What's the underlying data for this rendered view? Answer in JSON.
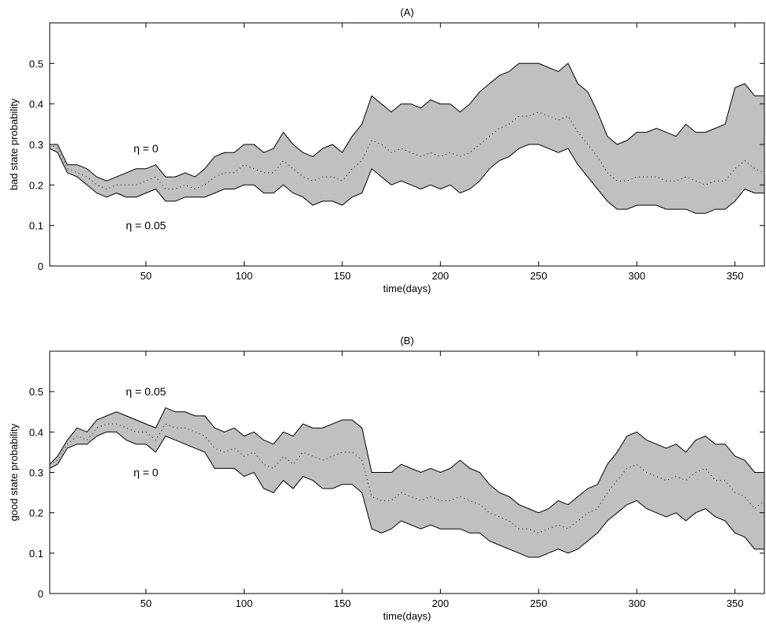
{
  "chart_data": [
    {
      "type": "area",
      "title": "(A)",
      "xlabel": "time(days)",
      "ylabel": "bad state probability",
      "xlim": [
        1,
        365
      ],
      "ylim": [
        0,
        0.6
      ],
      "xticks": [
        50,
        100,
        150,
        200,
        250,
        300,
        350
      ],
      "xtick_labels": [
        "50",
        "100",
        "150",
        "200",
        "250",
        "300",
        "350"
      ],
      "yticks": [
        0,
        0.1,
        0.2,
        0.3,
        0.4,
        0.5
      ],
      "ytick_labels": [
        "0",
        "0.1",
        "0.2",
        "0.3",
        "0.4",
        "0.5"
      ],
      "grid": false,
      "band_color": "#c0c0c0",
      "annotations": [
        {
          "text": "η = 0",
          "x": 50,
          "y": 0.29
        },
        {
          "text": "η = 0.05",
          "x": 50,
          "y": 0.1
        }
      ],
      "x": [
        1,
        5,
        10,
        15,
        20,
        25,
        30,
        35,
        40,
        45,
        50,
        55,
        60,
        65,
        70,
        75,
        80,
        85,
        90,
        95,
        100,
        105,
        110,
        115,
        120,
        125,
        130,
        135,
        140,
        145,
        150,
        155,
        160,
        165,
        170,
        175,
        180,
        185,
        190,
        195,
        200,
        205,
        210,
        215,
        220,
        225,
        230,
        235,
        240,
        245,
        250,
        255,
        260,
        265,
        270,
        275,
        280,
        285,
        290,
        295,
        300,
        305,
        310,
        315,
        320,
        325,
        330,
        335,
        340,
        345,
        350,
        355,
        360,
        365
      ],
      "series": [
        {
          "values": [
            0.3,
            0.3,
            0.25,
            0.25,
            0.24,
            0.22,
            0.21,
            0.22,
            0.23,
            0.24,
            0.24,
            0.25,
            0.22,
            0.22,
            0.23,
            0.22,
            0.24,
            0.27,
            0.28,
            0.28,
            0.3,
            0.3,
            0.28,
            0.29,
            0.33,
            0.3,
            0.28,
            0.27,
            0.29,
            0.3,
            0.28,
            0.32,
            0.35,
            0.42,
            0.4,
            0.38,
            0.4,
            0.4,
            0.39,
            0.41,
            0.4,
            0.4,
            0.38,
            0.4,
            0.43,
            0.45,
            0.47,
            0.48,
            0.5,
            0.5,
            0.5,
            0.49,
            0.48,
            0.5,
            0.45,
            0.43,
            0.38,
            0.32,
            0.3,
            0.31,
            0.33,
            0.33,
            0.34,
            0.33,
            0.32,
            0.35,
            0.33,
            0.33,
            0.34,
            0.35,
            0.44,
            0.45,
            0.42,
            0.42
          ]
        },
        {
          "values": [
            0.3,
            0.29,
            0.24,
            0.23,
            0.22,
            0.2,
            0.19,
            0.2,
            0.2,
            0.2,
            0.21,
            0.22,
            0.19,
            0.19,
            0.2,
            0.19,
            0.2,
            0.22,
            0.23,
            0.23,
            0.25,
            0.24,
            0.23,
            0.23,
            0.26,
            0.24,
            0.22,
            0.21,
            0.22,
            0.22,
            0.21,
            0.24,
            0.26,
            0.31,
            0.3,
            0.28,
            0.29,
            0.28,
            0.27,
            0.28,
            0.27,
            0.28,
            0.27,
            0.28,
            0.3,
            0.32,
            0.34,
            0.35,
            0.37,
            0.37,
            0.38,
            0.37,
            0.36,
            0.37,
            0.33,
            0.3,
            0.27,
            0.23,
            0.21,
            0.21,
            0.22,
            0.22,
            0.22,
            0.21,
            0.21,
            0.22,
            0.21,
            0.2,
            0.21,
            0.21,
            0.24,
            0.26,
            0.24,
            0.23
          ]
        },
        {
          "values": [
            0.29,
            0.28,
            0.23,
            0.22,
            0.2,
            0.18,
            0.17,
            0.18,
            0.17,
            0.17,
            0.18,
            0.19,
            0.16,
            0.16,
            0.17,
            0.17,
            0.17,
            0.18,
            0.19,
            0.19,
            0.2,
            0.2,
            0.18,
            0.18,
            0.2,
            0.18,
            0.17,
            0.15,
            0.16,
            0.16,
            0.15,
            0.17,
            0.18,
            0.24,
            0.22,
            0.2,
            0.21,
            0.2,
            0.19,
            0.2,
            0.19,
            0.2,
            0.18,
            0.19,
            0.21,
            0.24,
            0.26,
            0.27,
            0.29,
            0.3,
            0.3,
            0.29,
            0.28,
            0.29,
            0.25,
            0.22,
            0.19,
            0.16,
            0.14,
            0.14,
            0.15,
            0.15,
            0.15,
            0.14,
            0.14,
            0.14,
            0.13,
            0.13,
            0.14,
            0.14,
            0.16,
            0.19,
            0.18,
            0.18
          ]
        }
      ]
    },
    {
      "type": "area",
      "title": "(B)",
      "xlabel": "time(days)",
      "ylabel": "good state probability",
      "xlim": [
        1,
        365
      ],
      "ylim": [
        0,
        0.6
      ],
      "xticks": [
        50,
        100,
        150,
        200,
        250,
        300,
        350
      ],
      "xtick_labels": [
        "50",
        "100",
        "150",
        "200",
        "250",
        "300",
        "350"
      ],
      "yticks": [
        0,
        0.1,
        0.2,
        0.3,
        0.4,
        0.5
      ],
      "ytick_labels": [
        "0",
        "0.1",
        "0.2",
        "0.3",
        "0.4",
        "0.5"
      ],
      "grid": false,
      "band_color": "#c0c0c0",
      "annotations": [
        {
          "text": "η = 0.05",
          "x": 50,
          "y": 0.5
        },
        {
          "text": "η = 0",
          "x": 50,
          "y": 0.3
        }
      ],
      "x": [
        1,
        5,
        10,
        15,
        20,
        25,
        30,
        35,
        40,
        45,
        50,
        55,
        60,
        65,
        70,
        75,
        80,
        85,
        90,
        95,
        100,
        105,
        110,
        115,
        120,
        125,
        130,
        135,
        140,
        145,
        150,
        155,
        160,
        165,
        170,
        175,
        180,
        185,
        190,
        195,
        200,
        205,
        210,
        215,
        220,
        225,
        230,
        235,
        240,
        245,
        250,
        255,
        260,
        265,
        270,
        275,
        280,
        285,
        290,
        295,
        300,
        305,
        310,
        315,
        320,
        325,
        330,
        335,
        340,
        345,
        350,
        355,
        360,
        365
      ],
      "series": [
        {
          "values": [
            0.32,
            0.34,
            0.38,
            0.41,
            0.4,
            0.43,
            0.44,
            0.45,
            0.44,
            0.43,
            0.42,
            0.41,
            0.46,
            0.45,
            0.45,
            0.44,
            0.44,
            0.41,
            0.4,
            0.41,
            0.39,
            0.4,
            0.38,
            0.37,
            0.4,
            0.39,
            0.42,
            0.41,
            0.41,
            0.42,
            0.43,
            0.43,
            0.41,
            0.3,
            0.3,
            0.3,
            0.32,
            0.31,
            0.3,
            0.31,
            0.3,
            0.31,
            0.33,
            0.31,
            0.3,
            0.27,
            0.25,
            0.24,
            0.22,
            0.21,
            0.2,
            0.21,
            0.23,
            0.22,
            0.24,
            0.26,
            0.27,
            0.32,
            0.35,
            0.39,
            0.4,
            0.38,
            0.37,
            0.36,
            0.37,
            0.35,
            0.38,
            0.39,
            0.37,
            0.37,
            0.34,
            0.33,
            0.3,
            0.3
          ]
        },
        {
          "values": [
            0.32,
            0.33,
            0.37,
            0.39,
            0.38,
            0.41,
            0.42,
            0.42,
            0.41,
            0.4,
            0.4,
            0.38,
            0.42,
            0.41,
            0.41,
            0.4,
            0.39,
            0.36,
            0.35,
            0.36,
            0.34,
            0.35,
            0.32,
            0.31,
            0.34,
            0.32,
            0.35,
            0.34,
            0.33,
            0.34,
            0.35,
            0.35,
            0.33,
            0.24,
            0.23,
            0.23,
            0.25,
            0.24,
            0.23,
            0.24,
            0.23,
            0.23,
            0.24,
            0.23,
            0.22,
            0.2,
            0.19,
            0.18,
            0.16,
            0.16,
            0.15,
            0.16,
            0.17,
            0.16,
            0.18,
            0.2,
            0.21,
            0.25,
            0.28,
            0.31,
            0.32,
            0.3,
            0.29,
            0.28,
            0.29,
            0.28,
            0.3,
            0.31,
            0.28,
            0.28,
            0.25,
            0.24,
            0.21,
            0.23
          ]
        },
        {
          "values": [
            0.31,
            0.32,
            0.36,
            0.37,
            0.37,
            0.39,
            0.4,
            0.4,
            0.38,
            0.37,
            0.37,
            0.35,
            0.39,
            0.38,
            0.37,
            0.36,
            0.35,
            0.31,
            0.31,
            0.31,
            0.29,
            0.3,
            0.26,
            0.25,
            0.28,
            0.26,
            0.29,
            0.28,
            0.26,
            0.26,
            0.27,
            0.27,
            0.25,
            0.16,
            0.15,
            0.16,
            0.18,
            0.17,
            0.16,
            0.17,
            0.16,
            0.16,
            0.16,
            0.15,
            0.15,
            0.13,
            0.12,
            0.11,
            0.1,
            0.09,
            0.09,
            0.1,
            0.11,
            0.1,
            0.11,
            0.13,
            0.15,
            0.18,
            0.2,
            0.22,
            0.23,
            0.21,
            0.2,
            0.19,
            0.2,
            0.18,
            0.2,
            0.21,
            0.19,
            0.18,
            0.15,
            0.14,
            0.11,
            0.11
          ]
        }
      ]
    }
  ]
}
